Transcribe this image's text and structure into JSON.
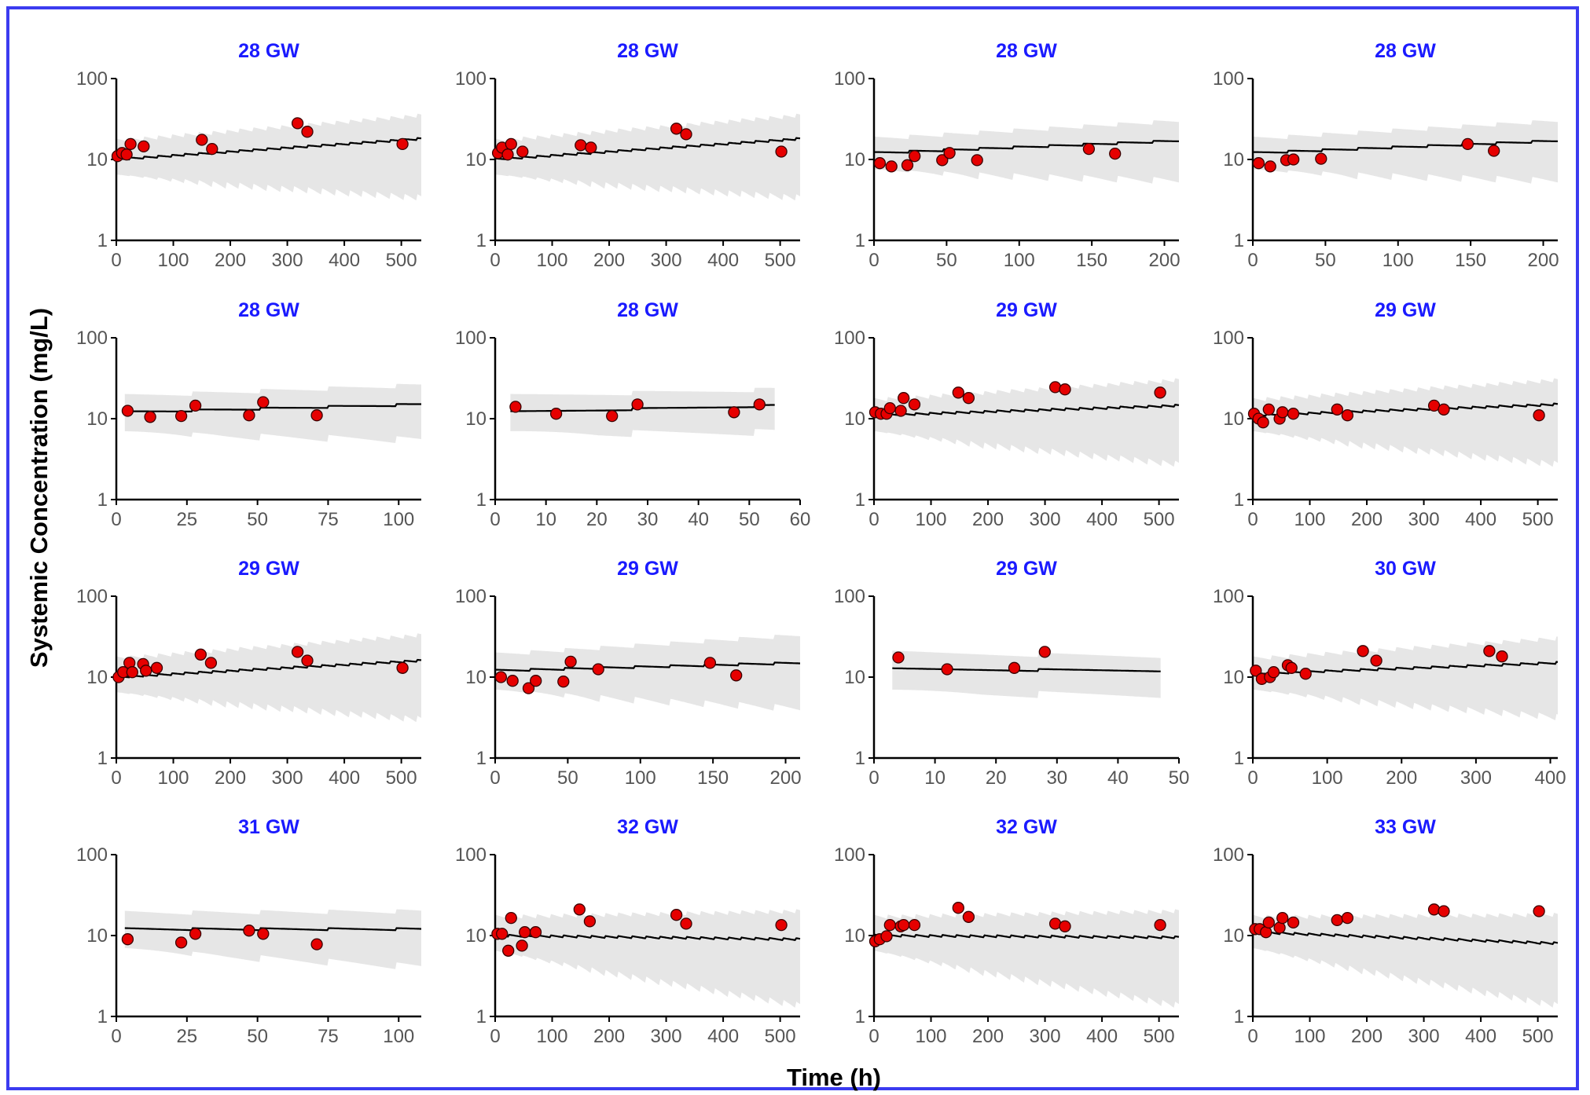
{
  "colors": {
    "frame_border": "#3b3bf0",
    "panel_title": "#1a1aff",
    "band": "#e6e6e6",
    "median_line": "#000000",
    "observed_point": "#e60000",
    "point_outline": "#3a0000"
  },
  "figure": {
    "xlabel": "Time (h)",
    "ylabel": "Systemic Concentration (mg/L)"
  },
  "chart_data": [
    {
      "type": "scatter",
      "title": "28 GW",
      "xlim": [
        0,
        535
      ],
      "ylim": [
        1,
        100
      ],
      "yscale": "log",
      "xticks": [
        0,
        100,
        200,
        300,
        400,
        500
      ],
      "yticks": [
        1,
        10,
        100
      ],
      "band": {
        "t0": 0,
        "t1": 535,
        "interval": 24,
        "median_start": 10,
        "median_end": 18,
        "lower_start": 6.5,
        "lower_end": 3.7,
        "upper_start": 17,
        "upper_end": 35
      },
      "points": [
        {
          "x": 2,
          "y": 11
        },
        {
          "x": 10,
          "y": 12
        },
        {
          "x": 18,
          "y": 11.5
        },
        {
          "x": 25,
          "y": 15.5
        },
        {
          "x": 48,
          "y": 14.5
        },
        {
          "x": 150,
          "y": 17.5
        },
        {
          "x": 168,
          "y": 13.5
        },
        {
          "x": 318,
          "y": 28
        },
        {
          "x": 335,
          "y": 22
        },
        {
          "x": 502,
          "y": 15.5
        }
      ]
    },
    {
      "type": "scatter",
      "title": "28 GW",
      "xlim": [
        0,
        535
      ],
      "ylim": [
        1,
        100
      ],
      "yscale": "log",
      "xticks": [
        0,
        100,
        200,
        300,
        400,
        500
      ],
      "yticks": [
        1,
        10,
        100
      ],
      "band": {
        "t0": 0,
        "t1": 535,
        "interval": 24,
        "median_start": 10,
        "median_end": 18,
        "lower_start": 6.5,
        "lower_end": 3.7,
        "upper_start": 17,
        "upper_end": 35
      },
      "points": [
        {
          "x": 5,
          "y": 12
        },
        {
          "x": 12,
          "y": 14
        },
        {
          "x": 22,
          "y": 11.5
        },
        {
          "x": 28,
          "y": 15.5
        },
        {
          "x": 48,
          "y": 12.5
        },
        {
          "x": 150,
          "y": 15
        },
        {
          "x": 168,
          "y": 14
        },
        {
          "x": 318,
          "y": 24
        },
        {
          "x": 335,
          "y": 20.5
        },
        {
          "x": 502,
          "y": 12.5
        }
      ]
    },
    {
      "type": "scatter",
      "title": "28 GW",
      "xlim": [
        0,
        210
      ],
      "ylim": [
        1,
        100
      ],
      "yscale": "log",
      "xticks": [
        0,
        50,
        100,
        150,
        200
      ],
      "yticks": [
        1,
        10,
        100
      ],
      "band": {
        "t0": 0,
        "t1": 210,
        "interval": 24,
        "median_start": 12,
        "median_end": 17,
        "lower_start": 7.5,
        "lower_end": 6,
        "upper_start": 18,
        "upper_end": 30
      },
      "points": [
        {
          "x": 4,
          "y": 9
        },
        {
          "x": 12,
          "y": 8.2
        },
        {
          "x": 23,
          "y": 8.5
        },
        {
          "x": 28,
          "y": 11
        },
        {
          "x": 47,
          "y": 9.8
        },
        {
          "x": 52,
          "y": 12
        },
        {
          "x": 71,
          "y": 9.8
        },
        {
          "x": 148,
          "y": 13.5
        },
        {
          "x": 166,
          "y": 11.8
        }
      ]
    },
    {
      "type": "scatter",
      "title": "28 GW",
      "xlim": [
        0,
        210
      ],
      "ylim": [
        1,
        100
      ],
      "yscale": "log",
      "xticks": [
        0,
        50,
        100,
        150,
        200
      ],
      "yticks": [
        1,
        10,
        100
      ],
      "band": {
        "t0": 0,
        "t1": 210,
        "interval": 24,
        "median_start": 12,
        "median_end": 17,
        "lower_start": 7.5,
        "lower_end": 6,
        "upper_start": 18,
        "upper_end": 30
      },
      "points": [
        {
          "x": 4,
          "y": 9
        },
        {
          "x": 12,
          "y": 8.2
        },
        {
          "x": 23,
          "y": 9.8
        },
        {
          "x": 28,
          "y": 10
        },
        {
          "x": 47,
          "y": 10.2
        },
        {
          "x": 148,
          "y": 15.5
        },
        {
          "x": 166,
          "y": 12.8
        }
      ]
    },
    {
      "type": "scatter",
      "title": "28 GW",
      "xlim": [
        0,
        108
      ],
      "ylim": [
        1,
        100
      ],
      "yscale": "log",
      "xticks": [
        0,
        25,
        50,
        75,
        100
      ],
      "yticks": [
        1,
        10,
        100
      ],
      "band": {
        "t0": 3,
        "t1": 108,
        "interval": 24,
        "median_start": 12,
        "median_end": 15,
        "lower_start": 7,
        "lower_end": 6,
        "upper_start": 19,
        "upper_end": 26
      },
      "points": [
        {
          "x": 4,
          "y": 12.5
        },
        {
          "x": 12,
          "y": 10.5
        },
        {
          "x": 23,
          "y": 10.8
        },
        {
          "x": 28,
          "y": 14.5
        },
        {
          "x": 47,
          "y": 11
        },
        {
          "x": 52,
          "y": 16
        },
        {
          "x": 71,
          "y": 11
        }
      ]
    },
    {
      "type": "scatter",
      "title": "28 GW",
      "xlim": [
        0,
        60
      ],
      "ylim": [
        1,
        100
      ],
      "yscale": "log",
      "xticks": [
        0,
        10,
        20,
        30,
        40,
        50,
        60
      ],
      "yticks": [
        1,
        10,
        100
      ],
      "band": {
        "t0": 3,
        "t1": 55,
        "interval": 24,
        "median_start": 12,
        "median_end": 14.5,
        "lower_start": 7,
        "lower_end": 7.5,
        "upper_start": 19,
        "upper_end": 23
      },
      "points": [
        {
          "x": 4,
          "y": 14
        },
        {
          "x": 12,
          "y": 11.5
        },
        {
          "x": 23,
          "y": 10.8
        },
        {
          "x": 28,
          "y": 15
        },
        {
          "x": 47,
          "y": 12
        },
        {
          "x": 52,
          "y": 15
        }
      ]
    },
    {
      "type": "scatter",
      "title": "29 GW",
      "xlim": [
        0,
        535
      ],
      "ylim": [
        1,
        100
      ],
      "yscale": "log",
      "xticks": [
        0,
        100,
        200,
        300,
        400,
        500
      ],
      "yticks": [
        1,
        10,
        100
      ],
      "band": {
        "t0": 0,
        "t1": 535,
        "interval": 24,
        "median_start": 11,
        "median_end": 14.5,
        "lower_start": 7,
        "lower_end": 3,
        "upper_start": 17,
        "upper_end": 30
      },
      "points": [
        {
          "x": 2,
          "y": 12
        },
        {
          "x": 12,
          "y": 11.5
        },
        {
          "x": 22,
          "y": 11.5
        },
        {
          "x": 28,
          "y": 13.5
        },
        {
          "x": 47,
          "y": 12.5
        },
        {
          "x": 52,
          "y": 18
        },
        {
          "x": 71,
          "y": 15
        },
        {
          "x": 148,
          "y": 21
        },
        {
          "x": 166,
          "y": 18
        },
        {
          "x": 318,
          "y": 24.5
        },
        {
          "x": 335,
          "y": 23
        },
        {
          "x": 502,
          "y": 21
        }
      ]
    },
    {
      "type": "scatter",
      "title": "29 GW",
      "xlim": [
        0,
        535
      ],
      "ylim": [
        1,
        100
      ],
      "yscale": "log",
      "xticks": [
        0,
        100,
        200,
        300,
        400,
        500
      ],
      "yticks": [
        1,
        10,
        100
      ],
      "band": {
        "t0": 0,
        "t1": 535,
        "interval": 24,
        "median_start": 11,
        "median_end": 15,
        "lower_start": 7,
        "lower_end": 3,
        "upper_start": 17,
        "upper_end": 30
      },
      "points": [
        {
          "x": 2,
          "y": 11.5
        },
        {
          "x": 10,
          "y": 10
        },
        {
          "x": 18,
          "y": 9
        },
        {
          "x": 28,
          "y": 13
        },
        {
          "x": 47,
          "y": 10
        },
        {
          "x": 52,
          "y": 12
        },
        {
          "x": 71,
          "y": 11.5
        },
        {
          "x": 148,
          "y": 13
        },
        {
          "x": 166,
          "y": 11
        },
        {
          "x": 318,
          "y": 14.5
        },
        {
          "x": 335,
          "y": 13
        },
        {
          "x": 502,
          "y": 11
        }
      ]
    },
    {
      "type": "scatter",
      "title": "29 GW",
      "xlim": [
        0,
        535
      ],
      "ylim": [
        1,
        100
      ],
      "yscale": "log",
      "xticks": [
        0,
        100,
        200,
        300,
        400,
        500
      ],
      "yticks": [
        1,
        10,
        100
      ],
      "band": {
        "t0": 0,
        "t1": 535,
        "interval": 24,
        "median_start": 10,
        "median_end": 16,
        "lower_start": 6.5,
        "lower_end": 3.3,
        "upper_start": 17,
        "upper_end": 33
      },
      "points": [
        {
          "x": 4,
          "y": 10
        },
        {
          "x": 12,
          "y": 11.5
        },
        {
          "x": 23,
          "y": 15
        },
        {
          "x": 28,
          "y": 11.5
        },
        {
          "x": 47,
          "y": 14.5
        },
        {
          "x": 52,
          "y": 12
        },
        {
          "x": 71,
          "y": 13
        },
        {
          "x": 148,
          "y": 19
        },
        {
          "x": 166,
          "y": 15
        },
        {
          "x": 318,
          "y": 20.5
        },
        {
          "x": 335,
          "y": 16
        },
        {
          "x": 502,
          "y": 13
        }
      ]
    },
    {
      "type": "scatter",
      "title": "29 GW",
      "xlim": [
        0,
        210
      ],
      "ylim": [
        1,
        100
      ],
      "yscale": "log",
      "xticks": [
        0,
        50,
        100,
        150,
        200
      ],
      "yticks": [
        1,
        10,
        100
      ],
      "band": {
        "t0": 0,
        "t1": 210,
        "interval": 24,
        "median_start": 12,
        "median_end": 15,
        "lower_start": 7,
        "lower_end": 4.5,
        "upper_start": 19,
        "upper_end": 33
      },
      "points": [
        {
          "x": 4,
          "y": 10
        },
        {
          "x": 12,
          "y": 9
        },
        {
          "x": 23,
          "y": 7.3
        },
        {
          "x": 28,
          "y": 9
        },
        {
          "x": 47,
          "y": 8.8
        },
        {
          "x": 52,
          "y": 15.5
        },
        {
          "x": 71,
          "y": 12.5
        },
        {
          "x": 148,
          "y": 15
        },
        {
          "x": 166,
          "y": 10.5
        }
      ]
    },
    {
      "type": "scatter",
      "title": "29 GW",
      "xlim": [
        0,
        50
      ],
      "ylim": [
        1,
        100
      ],
      "yscale": "log",
      "xticks": [
        0,
        10,
        20,
        30,
        40,
        50
      ],
      "yticks": [
        1,
        10,
        100
      ],
      "band": {
        "t0": 3,
        "t1": 47,
        "interval": 24,
        "median_start": 12.5,
        "median_end": 12,
        "lower_start": 7,
        "lower_end": 6.5,
        "upper_start": 20,
        "upper_end": 18
      },
      "points": [
        {
          "x": 4,
          "y": 17.5
        },
        {
          "x": 12,
          "y": 12.5
        },
        {
          "x": 23,
          "y": 13
        },
        {
          "x": 28,
          "y": 20.5
        }
      ]
    },
    {
      "type": "scatter",
      "title": "30 GW",
      "xlim": [
        0,
        410
      ],
      "ylim": [
        1,
        100
      ],
      "yscale": "log",
      "xticks": [
        0,
        100,
        200,
        300,
        400
      ],
      "yticks": [
        1,
        10,
        100
      ],
      "band": {
        "t0": 0,
        "t1": 410,
        "interval": 24,
        "median_start": 11,
        "median_end": 15,
        "lower_start": 7,
        "lower_end": 3.5,
        "upper_start": 17,
        "upper_end": 30
      },
      "points": [
        {
          "x": 4,
          "y": 12
        },
        {
          "x": 12,
          "y": 9.5
        },
        {
          "x": 23,
          "y": 10
        },
        {
          "x": 28,
          "y": 11.5
        },
        {
          "x": 47,
          "y": 14
        },
        {
          "x": 52,
          "y": 13
        },
        {
          "x": 71,
          "y": 11
        },
        {
          "x": 148,
          "y": 21
        },
        {
          "x": 166,
          "y": 16
        },
        {
          "x": 318,
          "y": 21
        },
        {
          "x": 335,
          "y": 18
        }
      ]
    },
    {
      "type": "scatter",
      "title": "31 GW",
      "xlim": [
        0,
        108
      ],
      "ylim": [
        1,
        100
      ],
      "yscale": "log",
      "xticks": [
        0,
        25,
        50,
        75,
        100
      ],
      "yticks": [
        1,
        10,
        100
      ],
      "band": {
        "t0": 3,
        "t1": 108,
        "interval": 24,
        "median_start": 12,
        "median_end": 12,
        "lower_start": 7,
        "lower_end": 4.5,
        "upper_start": 19,
        "upper_end": 20
      },
      "points": [
        {
          "x": 4,
          "y": 9
        },
        {
          "x": 23,
          "y": 8.2
        },
        {
          "x": 28,
          "y": 10.5
        },
        {
          "x": 47,
          "y": 11.5
        },
        {
          "x": 52,
          "y": 10.5
        },
        {
          "x": 71,
          "y": 7.8
        }
      ]
    },
    {
      "type": "scatter",
      "title": "32 GW",
      "xlim": [
        0,
        535
      ],
      "ylim": [
        1,
        100
      ],
      "yscale": "log",
      "xticks": [
        0,
        100,
        200,
        300,
        400,
        500
      ],
      "yticks": [
        1,
        10,
        100
      ],
      "band": {
        "t0": 0,
        "t1": 535,
        "interval": 24,
        "median_start": 10,
        "median_end": 9,
        "lower_start": 6.5,
        "lower_end": 1.5,
        "upper_start": 17,
        "upper_end": 20
      },
      "points": [
        {
          "x": 4,
          "y": 10.5
        },
        {
          "x": 12,
          "y": 10.5
        },
        {
          "x": 23,
          "y": 6.5
        },
        {
          "x": 28,
          "y": 16.5
        },
        {
          "x": 47,
          "y": 7.5
        },
        {
          "x": 52,
          "y": 11
        },
        {
          "x": 71,
          "y": 11
        },
        {
          "x": 148,
          "y": 21
        },
        {
          "x": 166,
          "y": 15
        },
        {
          "x": 318,
          "y": 18
        },
        {
          "x": 335,
          "y": 14
        },
        {
          "x": 502,
          "y": 13.5
        }
      ]
    },
    {
      "type": "scatter",
      "title": "32 GW",
      "xlim": [
        0,
        535
      ],
      "ylim": [
        1,
        100
      ],
      "yscale": "log",
      "xticks": [
        0,
        100,
        200,
        300,
        400,
        500
      ],
      "yticks": [
        1,
        10,
        100
      ],
      "band": {
        "t0": 0,
        "t1": 535,
        "interval": 24,
        "median_start": 10,
        "median_end": 9.5,
        "lower_start": 6.5,
        "lower_end": 1.5,
        "upper_start": 17,
        "upper_end": 20
      },
      "points": [
        {
          "x": 2,
          "y": 8.5
        },
        {
          "x": 10,
          "y": 9
        },
        {
          "x": 22,
          "y": 9.8
        },
        {
          "x": 28,
          "y": 13.5
        },
        {
          "x": 47,
          "y": 13
        },
        {
          "x": 52,
          "y": 13.5
        },
        {
          "x": 71,
          "y": 13.5
        },
        {
          "x": 148,
          "y": 22
        },
        {
          "x": 166,
          "y": 17
        },
        {
          "x": 318,
          "y": 14
        },
        {
          "x": 335,
          "y": 13
        },
        {
          "x": 502,
          "y": 13.5
        }
      ]
    },
    {
      "type": "scatter",
      "title": "33 GW",
      "xlim": [
        0,
        535
      ],
      "ylim": [
        1,
        100
      ],
      "yscale": "log",
      "xticks": [
        0,
        100,
        200,
        300,
        400,
        500
      ],
      "yticks": [
        1,
        10,
        100
      ],
      "band": {
        "t0": 0,
        "t1": 535,
        "interval": 24,
        "median_start": 11,
        "median_end": 8,
        "lower_start": 7,
        "lower_end": 1.5,
        "upper_start": 17,
        "upper_end": 18
      },
      "points": [
        {
          "x": 4,
          "y": 12
        },
        {
          "x": 12,
          "y": 12
        },
        {
          "x": 23,
          "y": 11
        },
        {
          "x": 28,
          "y": 14.5
        },
        {
          "x": 47,
          "y": 12.5
        },
        {
          "x": 52,
          "y": 16.5
        },
        {
          "x": 71,
          "y": 14.5
        },
        {
          "x": 148,
          "y": 15.5
        },
        {
          "x": 166,
          "y": 16.5
        },
        {
          "x": 318,
          "y": 21
        },
        {
          "x": 335,
          "y": 20
        },
        {
          "x": 502,
          "y": 20
        }
      ]
    }
  ]
}
